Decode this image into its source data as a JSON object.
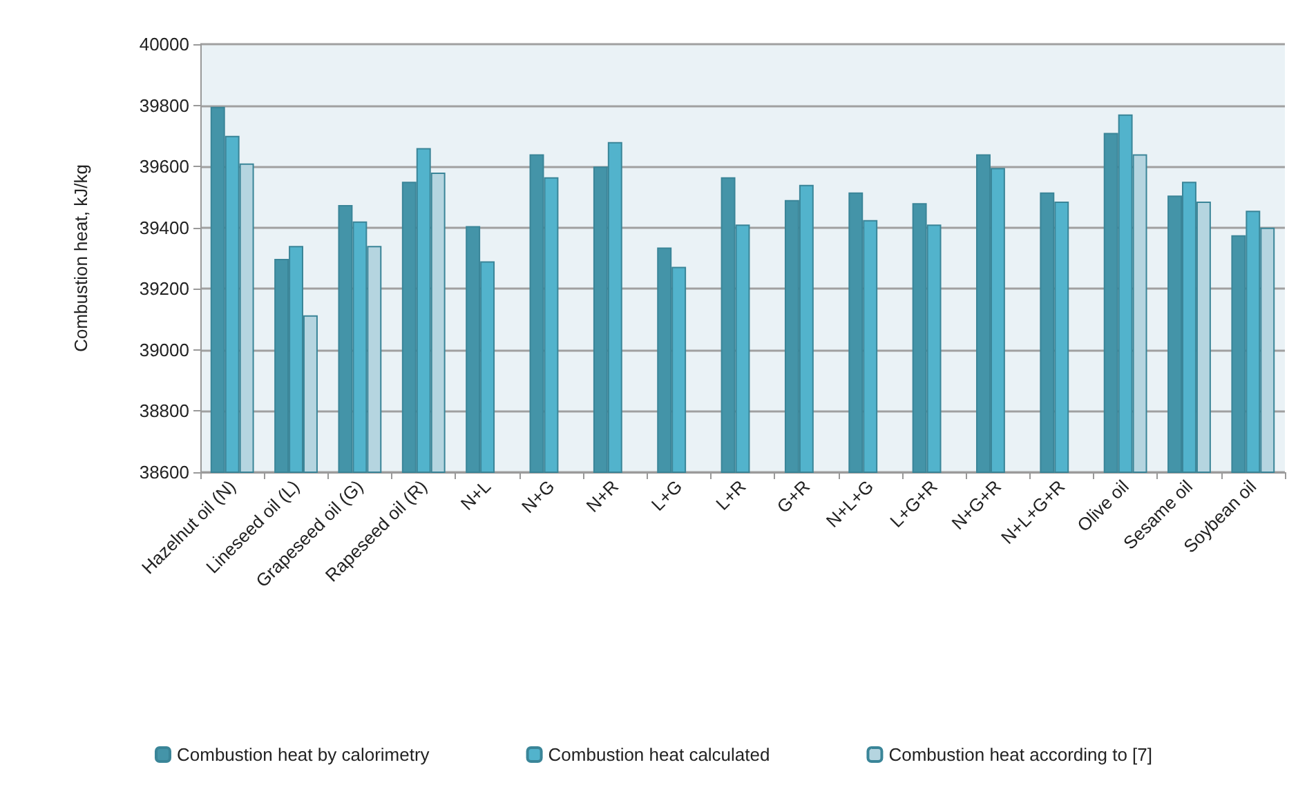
{
  "chart_data": {
    "type": "bar",
    "ylabel": "Combustion heat, kJ/kg",
    "categories": [
      "Hazelnut oil (N)",
      "Lineseed oil (L)",
      "Grapeseed oil (G)",
      "Rapeseed oil (R)",
      "N+L",
      "N+G",
      "N+R",
      "L+G",
      "L+R",
      "G+R",
      "N+L+G",
      "L+G+R",
      "N+G+R",
      "N+L+G+R",
      "Olive oil",
      "Sesame oil",
      "Soybean oil"
    ],
    "series": [
      {
        "name": "Combustion heat by calorimetry",
        "color": "#4494a8",
        "values": [
          39795,
          39298,
          39474,
          39550,
          39405,
          39640,
          39600,
          39335,
          39565,
          39490,
          39515,
          39480,
          39640,
          39515,
          39710,
          39505,
          39375
        ]
      },
      {
        "name": "Combustion heat calculated",
        "color": "#52b3cc",
        "values": [
          39700,
          39340,
          39420,
          39660,
          39290,
          39565,
          39680,
          39272,
          39410,
          39540,
          39425,
          39410,
          39595,
          39485,
          39770,
          39550,
          39455
        ]
      },
      {
        "name": "Combustion heat according to [7]",
        "color": "#b5d5e0",
        "values": [
          39610,
          39113,
          39340,
          39580,
          null,
          null,
          null,
          null,
          null,
          null,
          null,
          null,
          null,
          null,
          39640,
          39485,
          39400
        ]
      }
    ],
    "ylim": [
      38600,
      40000
    ],
    "yticks": [
      38600,
      38800,
      39000,
      39200,
      39400,
      39600,
      39800,
      40000
    ],
    "grid": "y",
    "legend": "bottom"
  }
}
